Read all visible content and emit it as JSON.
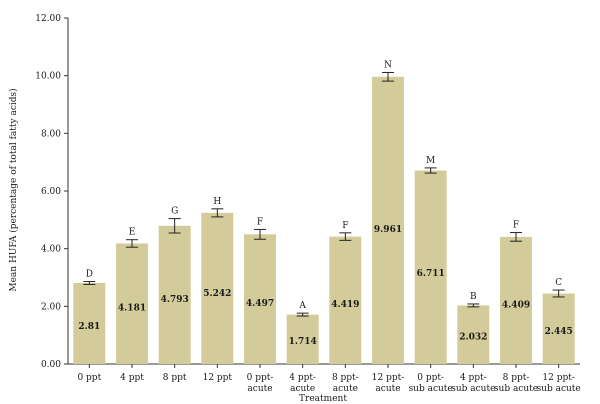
{
  "chart_data": {
    "type": "bar",
    "title": "",
    "xlabel": "Treatment",
    "ylabel": "Mean HUFA (percentage of total fatty acids)",
    "ylim": [
      0,
      12
    ],
    "yticks": [
      "0.00",
      "2.00",
      "4.00",
      "6.00",
      "8.00",
      "10.00",
      "12.00"
    ],
    "bar_color": "#d3cc9a",
    "grid": false,
    "categories": [
      [
        "0 ppt"
      ],
      [
        "4 ppt"
      ],
      [
        "8 ppt"
      ],
      [
        "12 ppt"
      ],
      [
        "0 ppt-",
        "acute"
      ],
      [
        "4 ppt-",
        "acute"
      ],
      [
        "8 ppt-",
        "acute"
      ],
      [
        "12 ppt-",
        "acute"
      ],
      [
        "0 ppt-",
        "sub acute"
      ],
      [
        "4 ppt-",
        "sub acute"
      ],
      [
        "8 ppt-",
        "sub acute"
      ],
      [
        "12 ppt-",
        "sub acute"
      ]
    ],
    "values": [
      2.81,
      4.181,
      4.793,
      5.242,
      4.497,
      1.714,
      4.419,
      9.961,
      6.711,
      2.032,
      4.409,
      2.445
    ],
    "value_labels": [
      "2.81",
      "4.181",
      "4.793",
      "5.242",
      "4.497",
      "1.714",
      "4.419",
      "9.961",
      "6.711",
      "2.032",
      "4.409",
      "2.445"
    ],
    "errors": [
      0.05,
      0.13,
      0.25,
      0.14,
      0.17,
      0.05,
      0.13,
      0.15,
      0.09,
      0.05,
      0.15,
      0.12
    ],
    "significance_letters": [
      "D",
      "E",
      "G",
      "H",
      "F",
      "A",
      "F",
      "N",
      "M",
      "B",
      "F",
      "C"
    ]
  }
}
